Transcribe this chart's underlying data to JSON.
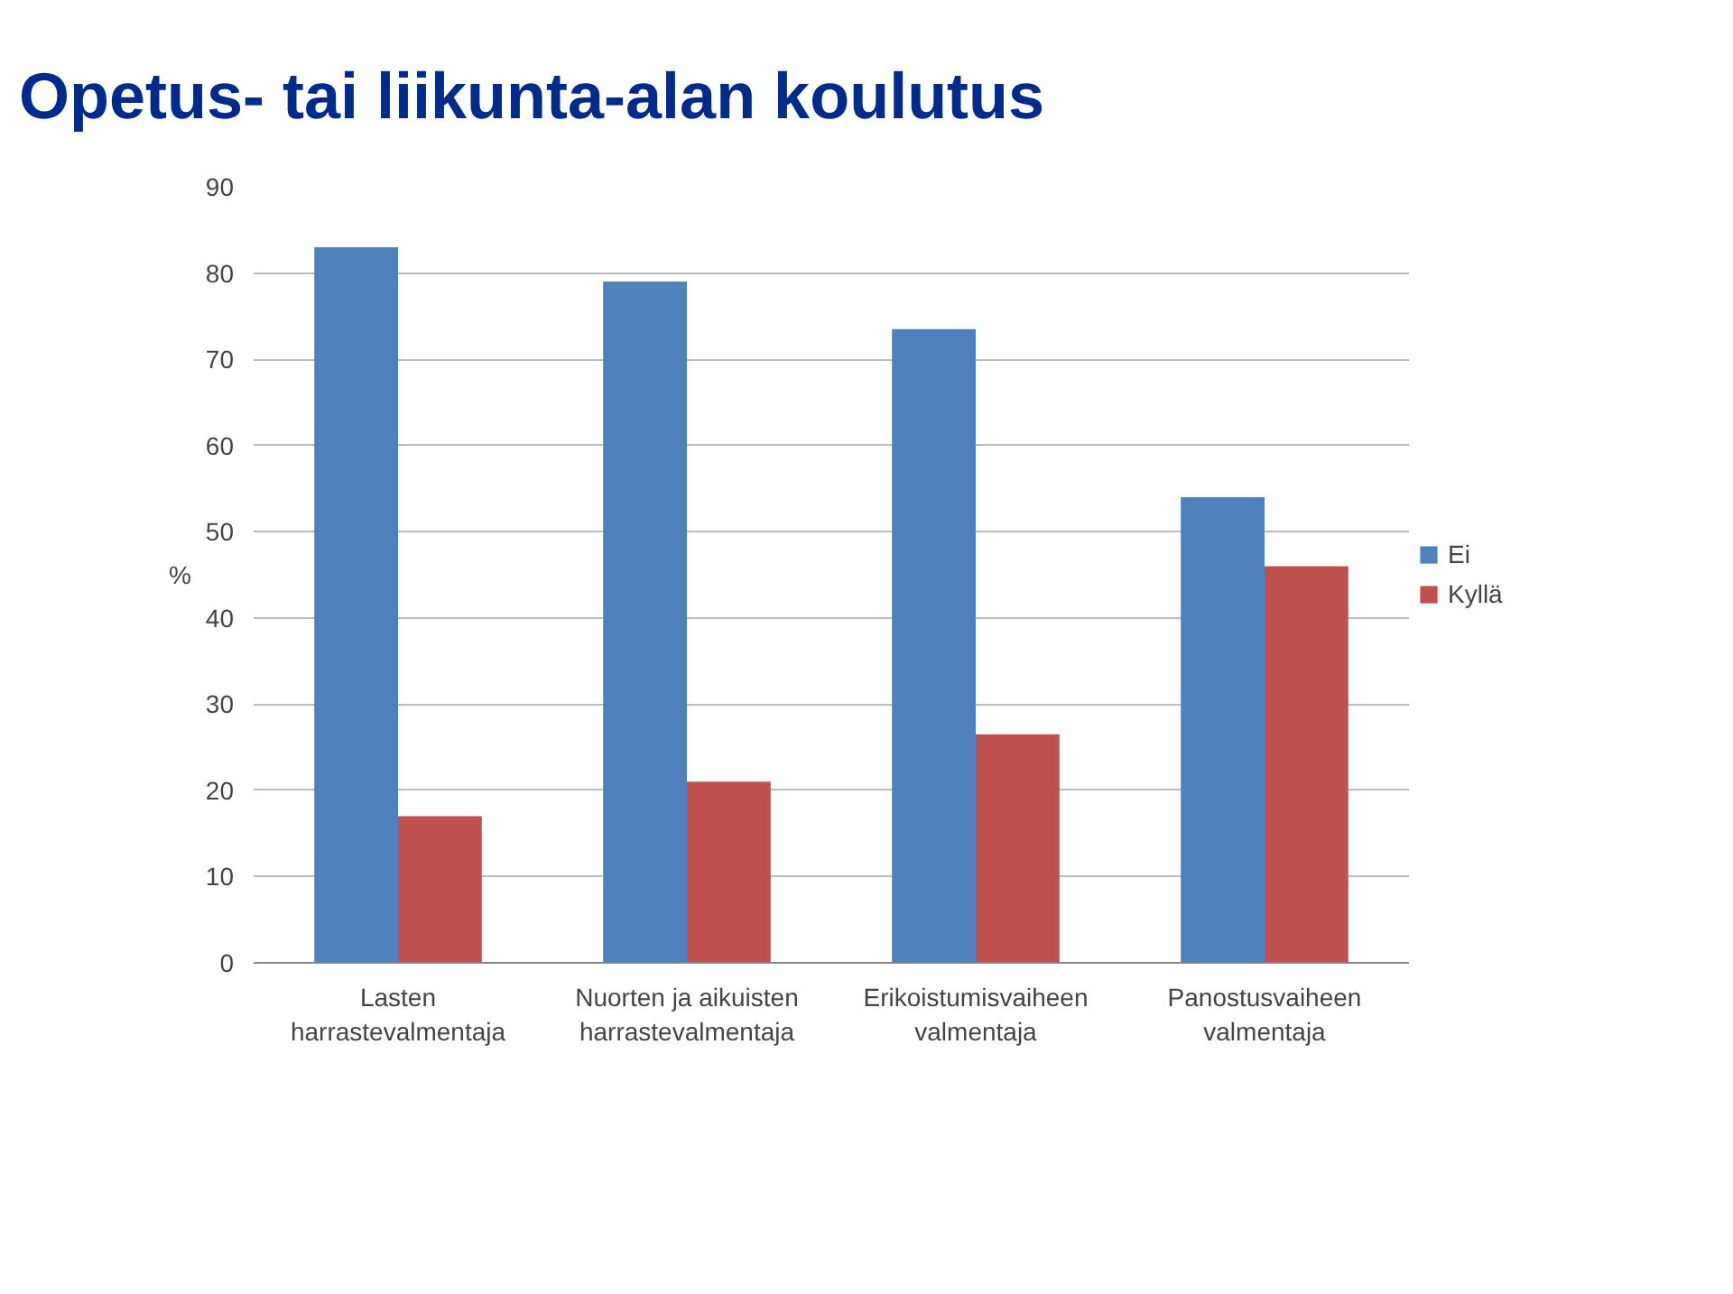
{
  "chart_data": {
    "type": "bar",
    "title": "Opetus- tai liikunta-alan koulutus",
    "ylabel": "%",
    "categories": [
      "Lasten harrastevalmentaja",
      "Nuorten ja aikuisten harrastevalmentaja",
      "Erikoistumisvaiheen valmentaja",
      "Panostusvaiheen valmentaja"
    ],
    "series": [
      {
        "name": "Ei",
        "color": "#4f81bd",
        "values": [
          83,
          79,
          73.5,
          54
        ]
      },
      {
        "name": "Kyllä",
        "color": "#c0504d",
        "values": [
          17,
          21,
          26.5,
          46
        ]
      }
    ],
    "ylim": [
      0,
      90
    ],
    "yticks": [
      0,
      10,
      20,
      30,
      40,
      50,
      60,
      70,
      80,
      90
    ],
    "grid": "y",
    "legend": "right"
  }
}
